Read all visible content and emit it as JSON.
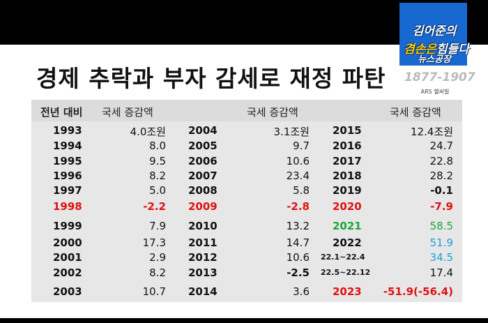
{
  "title": "경제 추락과 부자 감세로 재정 파탄",
  "logo": {
    "line1": "김어준의",
    "line2a": "겸손은",
    "line2b": "힘들다",
    "line3": "뉴스공장",
    "years": "1877-1907",
    "sub": "ARS 헬씨빌"
  },
  "headers": {
    "year_label": "전년 대비",
    "col1": "국세 증감액",
    "col2": "국세 증감액",
    "col3": "국세 증감액"
  },
  "rows": [
    {
      "y1": "1993",
      "v1": "4.0조원",
      "y2": "2004",
      "v2": "3.1조원",
      "y3": "2015",
      "v3": "12.4조원"
    },
    {
      "y1": "1994",
      "v1": "8.0",
      "y2": "2005",
      "v2": "9.7",
      "y3": "2016",
      "v3": "24.7"
    },
    {
      "y1": "1995",
      "v1": "9.5",
      "y2": "2006",
      "v2": "10.6",
      "y3": "2017",
      "v3": "22.8"
    },
    {
      "y1": "1996",
      "v1": "8.2",
      "y2": "2007",
      "v2": "23.4",
      "y3": "2018",
      "v3": "28.2"
    },
    {
      "y1": "1997",
      "v1": "5.0",
      "y2": "2008",
      "v2": "5.8",
      "y3": "2019",
      "v3": "-0.1"
    },
    {
      "y1": "1998",
      "v1": "-2.2",
      "y2": "2009",
      "v2": "-2.8",
      "y3": "2020",
      "v3": "-7.9"
    },
    {
      "y1": "1999",
      "v1": "7.9",
      "y2": "2010",
      "v2": "13.2",
      "y3": "2021",
      "v3": "58.5"
    },
    {
      "y1": "2000",
      "v1": "17.3",
      "y2": "2011",
      "v2": "14.7",
      "y3": "2022",
      "v3": "51.9"
    },
    {
      "y1": "2001",
      "v1": "2.9",
      "y2": "2012",
      "v2": "10.6",
      "y3": "22.1~22.4",
      "v3": "34.5"
    },
    {
      "y1": "2002",
      "v1": "8.2",
      "y2": "2013",
      "v2": "-2.5",
      "y3": "22.5~22.12",
      "v3": "17.4"
    },
    {
      "y1": "2003",
      "v1": "10.7",
      "y2": "2014",
      "v2": "3.6",
      "y3": "2023",
      "v3": "-51.9(-56.4)"
    }
  ],
  "colors": {
    "red": "#e01010",
    "green": "#1aa53a",
    "blue": "#1aa0dc"
  }
}
